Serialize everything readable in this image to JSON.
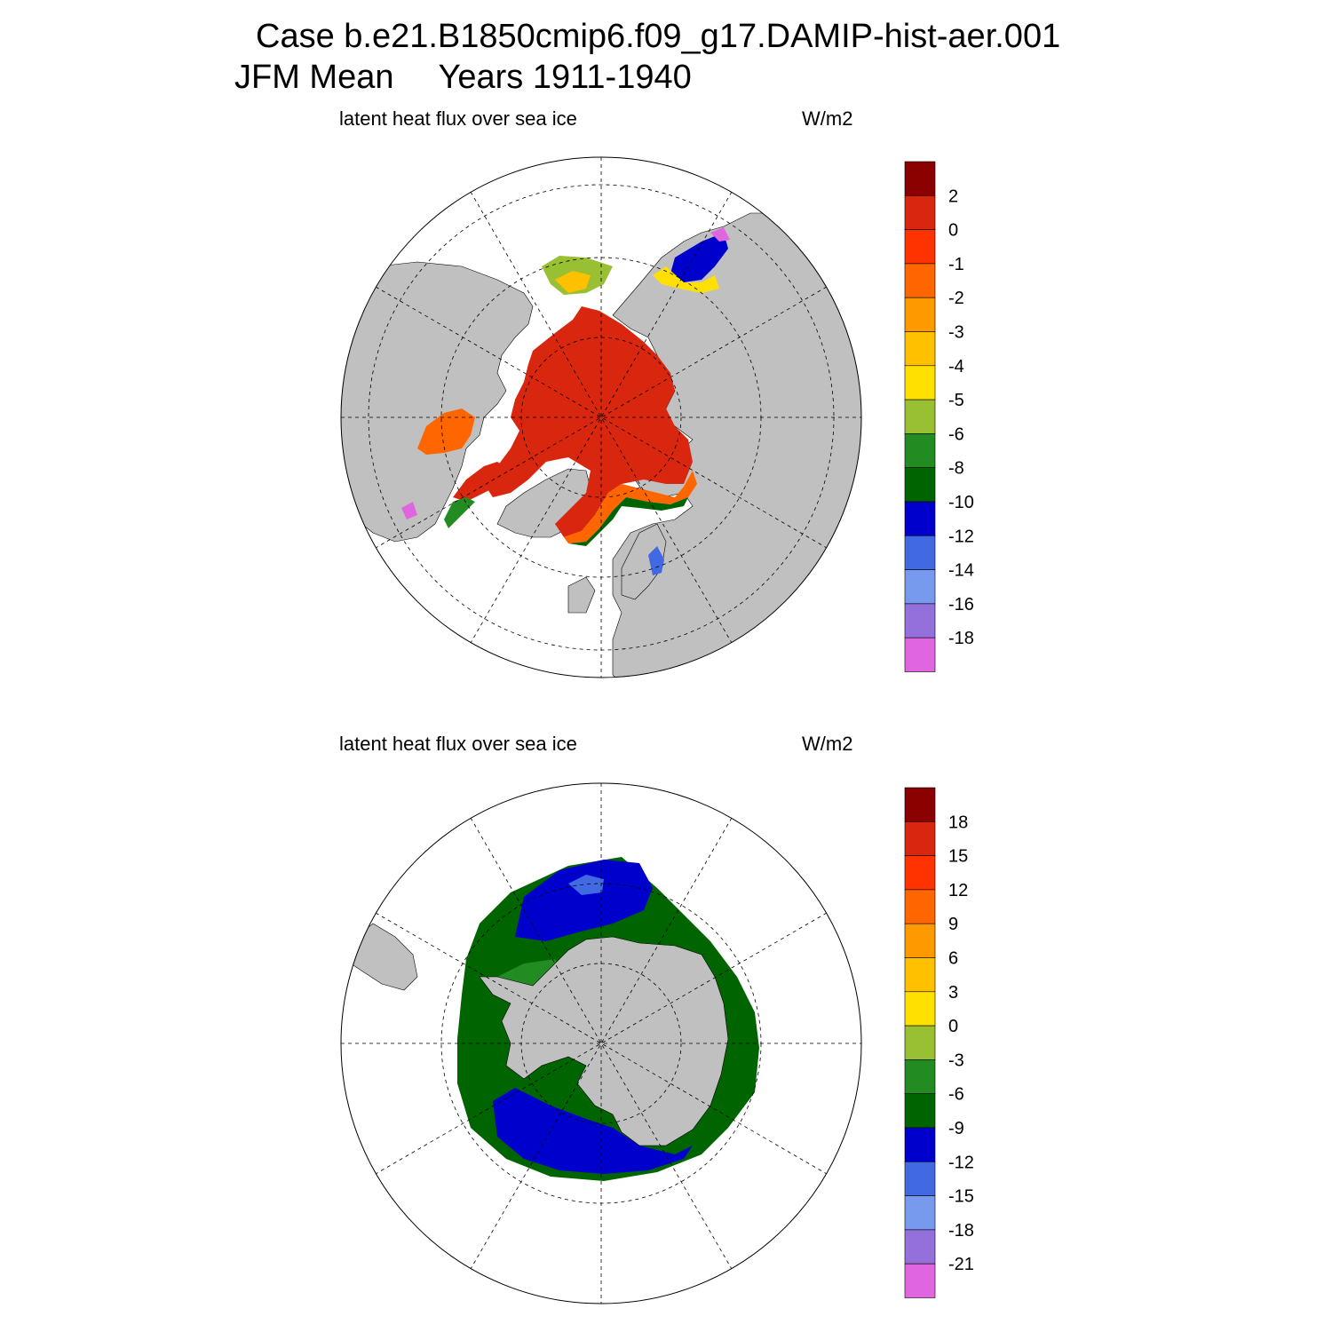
{
  "title": {
    "case": "Case b.e21.B1850cmip6.f09_g17.DAMIP-hist-aer.001",
    "season": "JFM Mean",
    "years": "Years 1911-1940"
  },
  "colors": {
    "land": "#c0c0c0",
    "palette": [
      "#8b0000",
      "#d9260f",
      "#ff3300",
      "#ff6600",
      "#ff9900",
      "#ffc000",
      "#ffe000",
      "#99bf33",
      "#228b22",
      "#006400",
      "#0000cd",
      "#4169e1",
      "#7799ee",
      "#9370db",
      "#e066e0"
    ]
  },
  "panels": [
    {
      "id": "north",
      "hemisphere": "Northern Hemisphere",
      "variable_label": "latent heat flux over sea ice",
      "units_label": "W/m2",
      "colorbar_labels": [
        "2",
        "0",
        "-1",
        "-2",
        "-3",
        "-4",
        "-5",
        "-6",
        "-8",
        "-10",
        "-12",
        "-14",
        "-16",
        "-18"
      ]
    },
    {
      "id": "south",
      "hemisphere": "Southern Hemisphere",
      "variable_label": "latent heat flux over sea ice",
      "units_label": "W/m2",
      "colorbar_labels": [
        "18",
        "15",
        "12",
        "9",
        "6",
        "3",
        "0",
        "-3",
        "-6",
        "-9",
        "-12",
        "-15",
        "-18",
        "-21"
      ]
    }
  ]
}
